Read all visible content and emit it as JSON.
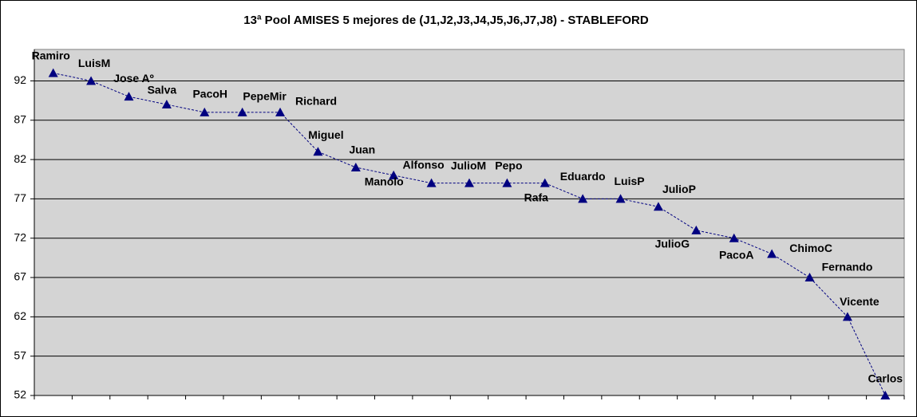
{
  "chart_data": {
    "type": "line",
    "title": "13ª Pool AMISES 5 mejores de (J1,J2,J3,J4,J5,J6,J7,J8) - STABLEFORD",
    "categories": [
      "Ramiro",
      "LuisM",
      "Jose Aº",
      "Salva",
      "PacoH",
      "PepeMir",
      "Richard",
      "Miguel",
      "Juan",
      "Manolo",
      "Alfonso",
      "JulioM",
      "Pepo",
      "Rafa",
      "Eduardo",
      "LuisP",
      "JulioP",
      "JulioG",
      "PacoA",
      "ChimoC",
      "Fernando",
      "Vicente",
      "Carlos"
    ],
    "values": [
      93,
      92,
      90,
      89,
      88,
      88,
      88,
      83,
      81,
      80,
      79,
      79,
      79,
      79,
      77,
      77,
      76,
      73,
      72,
      70,
      67,
      62,
      52
    ],
    "color": "#000080",
    "ylim": [
      52,
      96
    ],
    "yticks": [
      52,
      57,
      62,
      67,
      72,
      77,
      82,
      87,
      92
    ],
    "grid": true
  }
}
